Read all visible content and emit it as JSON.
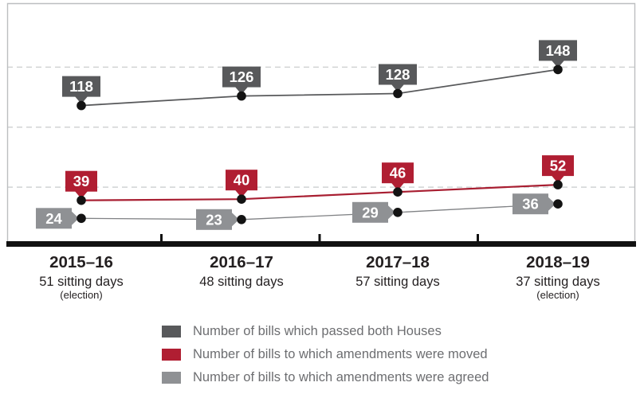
{
  "chart_data": {
    "type": "line",
    "title": "",
    "categories": [
      "2015–16",
      "2016–17",
      "2017–18",
      "2018–19"
    ],
    "category_sublabels": [
      "51 sitting days",
      "48 sitting days",
      "57 sitting days",
      "37 sitting days"
    ],
    "category_notes": [
      "(election)",
      "",
      "",
      "(election)"
    ],
    "series": [
      {
        "name": "Number of bills which passed both Houses",
        "values": [
          118,
          126,
          128,
          148
        ],
        "color": "#58595B",
        "line_color": "#58595B",
        "label_style": "pointer-down"
      },
      {
        "name": "Number of bills to which amendments were moved",
        "values": [
          39,
          40,
          46,
          52
        ],
        "color": "#B01E32",
        "line_color": "#A81E31",
        "label_style": "pointer-down"
      },
      {
        "name": "Number of bills to which amendments were agreed",
        "values": [
          24,
          23,
          29,
          36
        ],
        "color": "#8F9194",
        "line_color": "#808285",
        "label_style": "pointer-right"
      }
    ],
    "ylim": [
      0,
      200
    ],
    "gridline_values": [
      50,
      100,
      150
    ],
    "grid_style": "dashed-horizontal",
    "legend_position": "bottom",
    "point_color": "#131313",
    "axis_color": "#111111",
    "tick_color": "#111111",
    "frame_color": "#BCBEC0",
    "gridline_color": "#D1D3D4",
    "callout_text_color": "#FFFFFF",
    "category_text_color": "#231F20",
    "legend_text_color": "#6D6E71"
  }
}
